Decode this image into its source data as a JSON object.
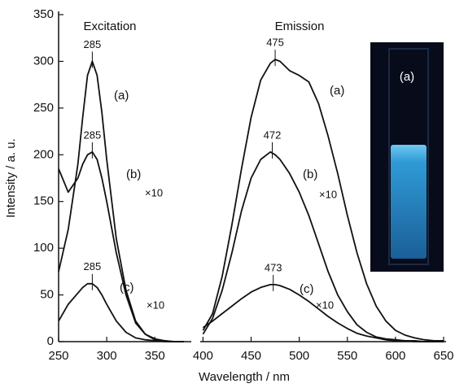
{
  "chart_data": {
    "type": "line",
    "x_label": "Wavelength / nm",
    "y_label": "Intensity / a. u.",
    "xlim": [
      250,
      650
    ],
    "xticks": [
      250,
      300,
      350,
      400,
      450,
      500,
      550,
      600,
      650
    ],
    "ylim": [
      0,
      350
    ],
    "yticks": [
      0,
      50,
      100,
      150,
      200,
      250,
      300,
      350
    ],
    "groups": [
      "Excitation",
      "Emission"
    ],
    "inset_label": "(a)",
    "series": [
      {
        "name": "(a)",
        "group": 0,
        "color": "#111",
        "peak": 285,
        "x": [
          250,
          260,
          270,
          275,
          280,
          285,
          290,
          295,
          300,
          310,
          320,
          330,
          340,
          350,
          360,
          370,
          380
        ],
        "values": [
          75,
          120,
          190,
          240,
          285,
          300,
          285,
          245,
          195,
          110,
          55,
          22,
          8,
          3,
          1,
          0,
          0
        ]
      },
      {
        "name": "(b)",
        "group": 0,
        "color": "#111",
        "peak": 285,
        "scale_label": "×10",
        "x": [
          250,
          260,
          270,
          275,
          280,
          285,
          290,
          295,
          300,
          310,
          320,
          330,
          340,
          350,
          360,
          370,
          380
        ],
        "values": [
          185,
          160,
          175,
          190,
          200,
          203,
          195,
          175,
          150,
          95,
          50,
          20,
          8,
          2,
          1,
          0,
          0
        ]
      },
      {
        "name": "(c)",
        "group": 0,
        "color": "#111",
        "peak": 285,
        "scale_label": "×10",
        "x": [
          250,
          260,
          270,
          275,
          280,
          285,
          290,
          295,
          300,
          310,
          320,
          330,
          340,
          350,
          360,
          370,
          380
        ],
        "values": [
          22,
          40,
          52,
          58,
          62,
          62,
          58,
          50,
          40,
          22,
          10,
          4,
          2,
          1,
          0,
          0,
          0
        ]
      },
      {
        "name": "(a)",
        "group": 1,
        "color": "#111",
        "peak": 475,
        "x": [
          400,
          410,
          420,
          430,
          440,
          450,
          460,
          470,
          475,
          480,
          490,
          500,
          510,
          520,
          530,
          540,
          550,
          560,
          570,
          580,
          590,
          600,
          610,
          620,
          630,
          640,
          650
        ],
        "values": [
          12,
          30,
          70,
          125,
          185,
          240,
          280,
          298,
          302,
          300,
          290,
          285,
          278,
          255,
          220,
          180,
          135,
          95,
          62,
          38,
          22,
          12,
          7,
          4,
          2,
          1,
          1
        ]
      },
      {
        "name": "(b)",
        "group": 1,
        "color": "#111",
        "peak": 472,
        "scale_label": "×10",
        "x": [
          400,
          410,
          420,
          430,
          440,
          450,
          460,
          470,
          475,
          480,
          490,
          500,
          510,
          520,
          530,
          540,
          550,
          560,
          570,
          580,
          590,
          600,
          610,
          620,
          630,
          640,
          650
        ],
        "values": [
          8,
          25,
          55,
          95,
          140,
          175,
          195,
          203,
          200,
          195,
          180,
          160,
          135,
          105,
          75,
          50,
          32,
          18,
          10,
          5,
          3,
          2,
          1,
          1,
          0,
          0,
          0
        ]
      },
      {
        "name": "(c)",
        "group": 1,
        "color": "#111",
        "peak": 473,
        "scale_label": "×10",
        "x": [
          400,
          410,
          420,
          430,
          440,
          450,
          460,
          470,
          475,
          480,
          490,
          500,
          510,
          520,
          530,
          540,
          550,
          560,
          570,
          580,
          590,
          600,
          610,
          620,
          630,
          640,
          650
        ],
        "values": [
          15,
          22,
          30,
          38,
          46,
          53,
          58,
          61,
          61,
          60,
          56,
          50,
          43,
          35,
          27,
          20,
          14,
          9,
          6,
          4,
          2,
          1,
          1,
          0,
          0,
          0,
          0
        ]
      }
    ]
  }
}
